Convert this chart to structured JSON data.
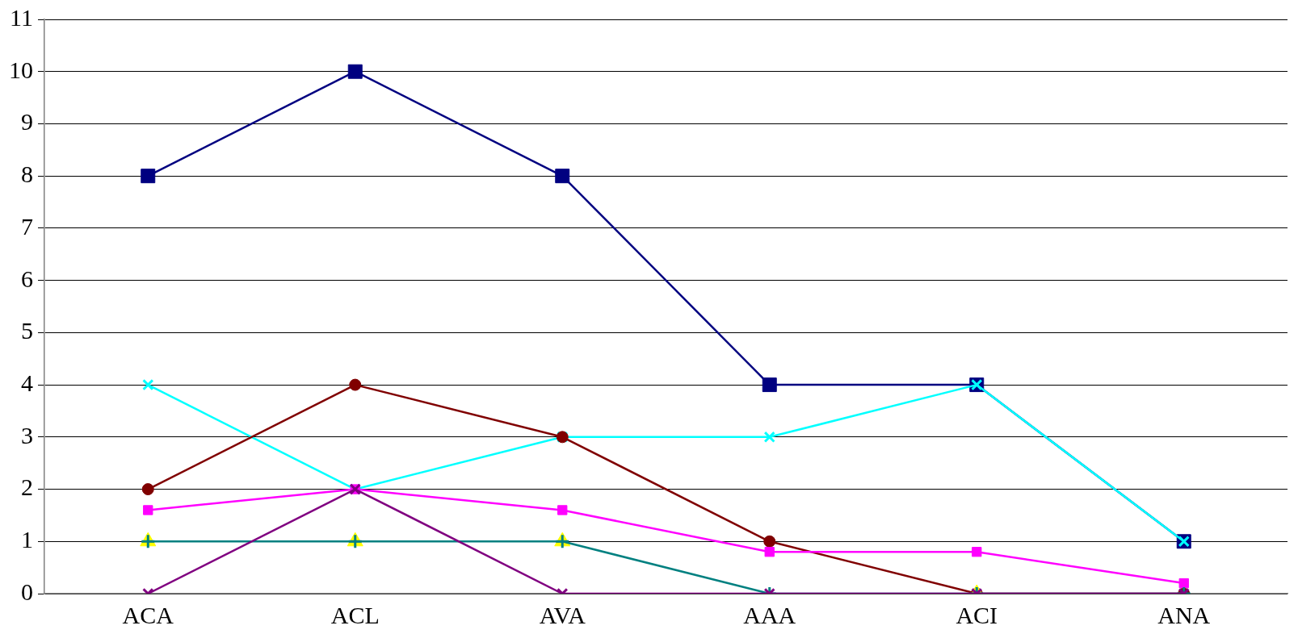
{
  "chart_data": {
    "type": "line",
    "categories": [
      "ACA",
      "ACL",
      "AVA",
      "AAA",
      "ACI",
      "ANA"
    ],
    "series": [
      {
        "color": "#000080",
        "marker": "square",
        "values": [
          8,
          10,
          8,
          4,
          4,
          1
        ]
      },
      {
        "color": "#00ffff",
        "marker": "cross",
        "values": [
          4,
          2,
          3,
          3,
          4,
          1
        ]
      },
      {
        "color": "#800000",
        "marker": "circle",
        "values": [
          2,
          4,
          3,
          1,
          0,
          0
        ]
      },
      {
        "color": "#ff00ff",
        "marker": "square",
        "values": [
          1.6,
          2,
          1.6,
          0.8,
          0.8,
          0.2
        ]
      },
      {
        "type": "scatter",
        "color": "#ffff00",
        "marker": "triangle",
        "values": [
          1,
          1,
          1,
          null,
          0,
          null
        ]
      },
      {
        "color": "#008080",
        "marker": "plus",
        "values": [
          1,
          1,
          1,
          0,
          0,
          0
        ]
      },
      {
        "color": "#800080",
        "marker": "cross",
        "values": [
          0,
          2,
          0,
          0,
          0,
          0
        ]
      }
    ],
    "ylim": [
      0,
      11
    ],
    "yticks": [
      0,
      1,
      2,
      3,
      4,
      5,
      6,
      7,
      8,
      9,
      10,
      11
    ],
    "grid": "y",
    "legend": false,
    "line_style": "solid"
  }
}
